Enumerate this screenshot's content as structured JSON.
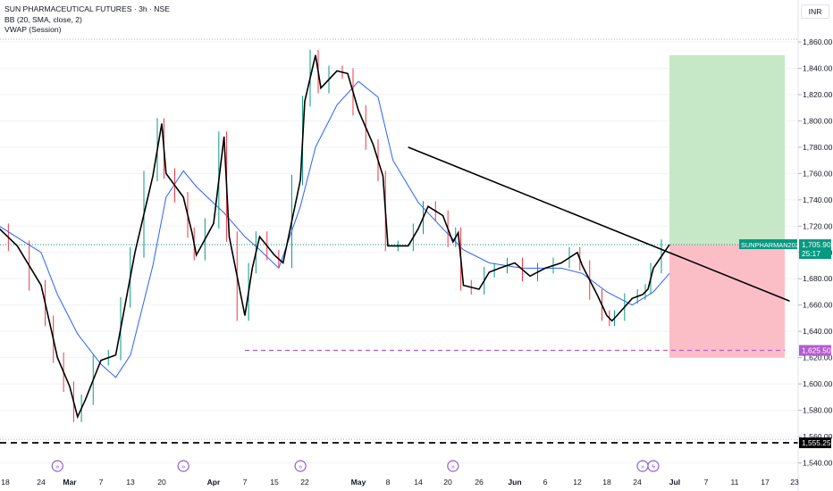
{
  "legend": {
    "title": "SUN PHARMACEUTICAL FUTURES · 3h · NSE",
    "bb": "BB (20, SMA, close, 2)",
    "vwap": "VWAP (Session)"
  },
  "currency": "INR",
  "price_badge": {
    "symbol": "SUNPHARMAN2025",
    "price": "1,705.90",
    "countdown": "25:17"
  },
  "level_badges": {
    "stop": "1,625.50",
    "support": "1,555.25"
  },
  "colors": {
    "up": "#089981",
    "down": "#f23645",
    "candle_line": "#000000",
    "bb_basis": "#2962ff",
    "trendline": "#000000",
    "profit_zone": "#c6e8c6",
    "loss_zone": "#fbbec6",
    "stop_line": "#b35bd0",
    "price_line": "#089981",
    "event_icon": "#8e5fd1"
  },
  "chart_data": {
    "type": "line",
    "title": "SUN PHARMACEUTICAL FUTURES · 3h · NSE",
    "ylim": [
      1535,
      1868
    ],
    "y_ticks": [
      1540,
      1560,
      1580,
      1600,
      1620,
      1640,
      1660,
      1680,
      1700,
      1720,
      1740,
      1760,
      1780,
      1800,
      1820,
      1840,
      1860
    ],
    "x_ticks": [
      "18",
      "24",
      "Mar",
      "7",
      "13",
      "20",
      "Apr",
      "7",
      "15",
      "22",
      "May",
      "8",
      "14",
      "20",
      "26",
      "Jun",
      "6",
      "12",
      "18",
      "24",
      "Jul",
      "7",
      "11",
      "17",
      "23"
    ],
    "x_labels_bold": [
      "Mar",
      "Apr",
      "May",
      "Jun",
      "Jul"
    ],
    "series": [
      {
        "name": "",
        "points": [
          {
            "date": "Feb 17",
            "close": 1718
          },
          {
            "date": "Feb 20",
            "close": 1705
          },
          {
            "date": "Feb 24",
            "close": 1675
          },
          {
            "date": "Feb 26",
            "close": 1648
          },
          {
            "date": "Feb 28",
            "close": 1620
          },
          {
            "date": "Mar 3",
            "close": 1598
          },
          {
            "date": "Mar 4",
            "close": 1575
          },
          {
            "date": "Mar 5",
            "close": 1588
          },
          {
            "date": "Mar 7",
            "close": 1618
          },
          {
            "date": "Mar 10",
            "close": 1622
          },
          {
            "date": "Mar 12",
            "close": 1662
          },
          {
            "date": "Mar 14",
            "close": 1700
          },
          {
            "date": "Mar 18",
            "close": 1758
          },
          {
            "date": "Mar 20",
            "close": 1798
          },
          {
            "date": "Mar 21",
            "close": 1760
          },
          {
            "date": "Mar 25",
            "close": 1742
          },
          {
            "date": "Mar 27",
            "close": 1715
          },
          {
            "date": "Mar 28",
            "close": 1698
          },
          {
            "date": "Apr 1",
            "close": 1722
          },
          {
            "date": "Apr 3",
            "close": 1788
          },
          {
            "date": "Apr 4",
            "close": 1712
          },
          {
            "date": "Apr 7",
            "close": 1652
          },
          {
            "date": "Apr 9",
            "close": 1688
          },
          {
            "date": "Apr 11",
            "close": 1712
          },
          {
            "date": "Apr 15",
            "close": 1698
          },
          {
            "date": "Apr 17",
            "close": 1692
          },
          {
            "date": "Apr 21",
            "close": 1755
          },
          {
            "date": "Apr 22",
            "close": 1815
          },
          {
            "date": "Apr 24",
            "close": 1850
          },
          {
            "date": "Apr 25",
            "close": 1825
          },
          {
            "date": "Apr 28",
            "close": 1838
          },
          {
            "date": "Apr 30",
            "close": 1836
          },
          {
            "date": "May 2",
            "close": 1808
          },
          {
            "date": "May 5",
            "close": 1782
          },
          {
            "date": "May 7",
            "close": 1758
          },
          {
            "date": "May 8",
            "close": 1705
          },
          {
            "date": "May 12",
            "close": 1705
          },
          {
            "date": "May 14",
            "close": 1718
          },
          {
            "date": "May 16",
            "close": 1735
          },
          {
            "date": "May 19",
            "close": 1728
          },
          {
            "date": "May 21",
            "close": 1708
          },
          {
            "date": "May 22",
            "close": 1715
          },
          {
            "date": "May 23",
            "close": 1675
          },
          {
            "date": "May 26",
            "close": 1672
          },
          {
            "date": "May 28",
            "close": 1685
          },
          {
            "date": "May 30",
            "close": 1688
          },
          {
            "date": "Jun 2",
            "close": 1692
          },
          {
            "date": "Jun 4",
            "close": 1682
          },
          {
            "date": "Jun 6",
            "close": 1688
          },
          {
            "date": "Jun 9",
            "close": 1692
          },
          {
            "date": "Jun 12",
            "close": 1700
          },
          {
            "date": "Jun 13",
            "close": 1690
          },
          {
            "date": "Jun 16",
            "close": 1668
          },
          {
            "date": "Jun 18",
            "close": 1652
          },
          {
            "date": "Jun 19",
            "close": 1648
          },
          {
            "date": "Jun 20",
            "close": 1652
          },
          {
            "date": "Jun 23",
            "close": 1665
          },
          {
            "date": "Jun 25",
            "close": 1668
          },
          {
            "date": "Jun 26",
            "close": 1672
          },
          {
            "date": "Jun 27",
            "close": 1688
          },
          {
            "date": "Jun 30",
            "close": 1705.9
          }
        ]
      },
      {
        "name": "BB (20, SMA, close, 2)",
        "points": [
          {
            "date": "Feb 17",
            "close": 1720
          },
          {
            "date": "Feb 24",
            "close": 1700
          },
          {
            "date": "Feb 28",
            "close": 1668
          },
          {
            "date": "Mar 4",
            "close": 1638
          },
          {
            "date": "Mar 7",
            "close": 1615
          },
          {
            "date": "Mar 10",
            "close": 1605
          },
          {
            "date": "Mar 13",
            "close": 1622
          },
          {
            "date": "Mar 18",
            "close": 1690
          },
          {
            "date": "Mar 21",
            "close": 1742
          },
          {
            "date": "Mar 25",
            "close": 1762
          },
          {
            "date": "Mar 28",
            "close": 1750
          },
          {
            "date": "Apr 3",
            "close": 1730
          },
          {
            "date": "Apr 7",
            "close": 1712
          },
          {
            "date": "Apr 11",
            "close": 1702
          },
          {
            "date": "Apr 16",
            "close": 1688
          },
          {
            "date": "Apr 21",
            "close": 1735
          },
          {
            "date": "Apr 24",
            "close": 1780
          },
          {
            "date": "Apr 28",
            "close": 1812
          },
          {
            "date": "May 2",
            "close": 1830
          },
          {
            "date": "May 6",
            "close": 1818
          },
          {
            "date": "May 9",
            "close": 1770
          },
          {
            "date": "May 14",
            "close": 1738
          },
          {
            "date": "May 19",
            "close": 1718
          },
          {
            "date": "May 23",
            "close": 1702
          },
          {
            "date": "May 28",
            "close": 1692
          },
          {
            "date": "Jun 3",
            "close": 1688
          },
          {
            "date": "Jun 9",
            "close": 1688
          },
          {
            "date": "Jun 13",
            "close": 1684
          },
          {
            "date": "Jun 18",
            "close": 1670
          },
          {
            "date": "Jun 23",
            "close": 1660
          },
          {
            "date": "Jun 27",
            "close": 1670
          },
          {
            "date": "Jun 30",
            "close": 1684
          }
        ]
      }
    ],
    "trendline": {
      "from": {
        "date": "May 12",
        "value": 1780
      },
      "to": {
        "date": "Jul 22",
        "value": 1663
      }
    },
    "position": {
      "entry": 1705.9,
      "target": 1850,
      "stop": 1620,
      "start": "Jun 30",
      "end": "Jul 21"
    },
    "stop_level": {
      "value": 1625.5,
      "from": "Apr 7",
      "to": "Jul 21"
    },
    "support_level": 1555.25,
    "current_price": 1705.9,
    "event_markers": [
      "Feb 28",
      "Mar 25",
      "Apr 21",
      "May 21",
      "Jun 25",
      "Jun 27"
    ]
  }
}
